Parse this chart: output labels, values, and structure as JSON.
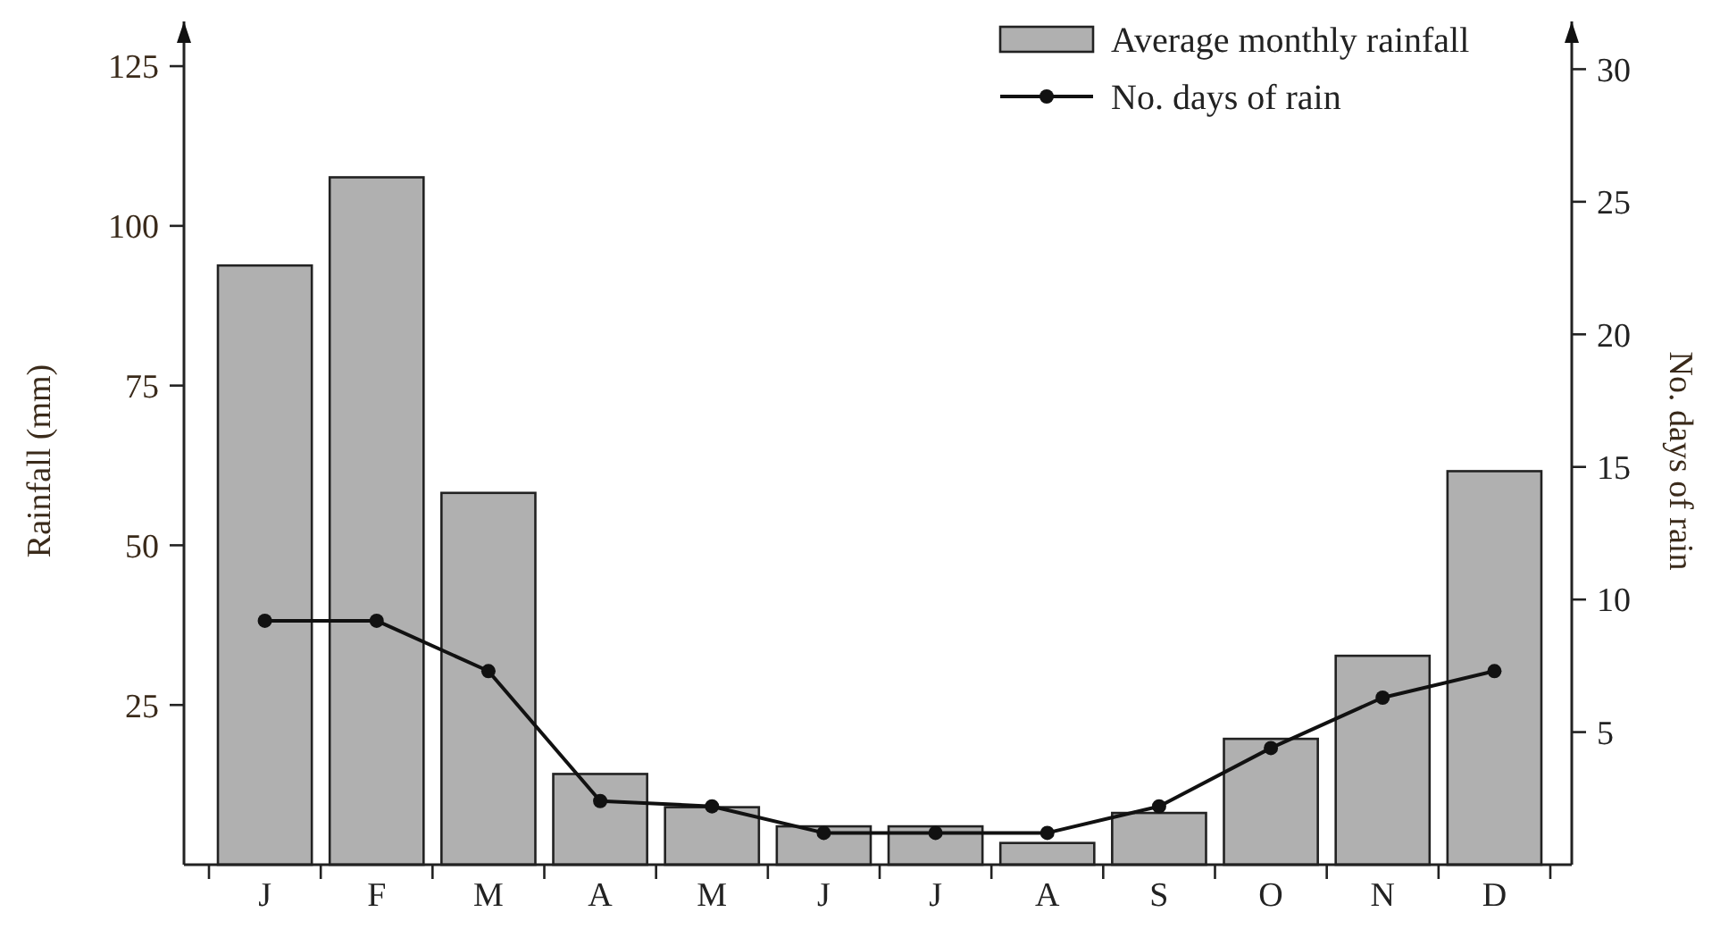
{
  "chart_data": {
    "type": "bar",
    "ylabel": "Rainfall (mm)",
    "y2label": "No. days of rain",
    "categories": [
      "J",
      "F",
      "M",
      "A",
      "M",
      "J",
      "J",
      "A",
      "S",
      "O",
      "N",
      "D"
    ],
    "series": [
      {
        "name": "Average monthly rainfall",
        "color": "#b0b0b0",
        "values": [
          93.8,
          107.6,
          58.2,
          14.2,
          9.0,
          6.0,
          6.0,
          3.4,
          8.1,
          19.7,
          32.7,
          61.6
        ]
      },
      {
        "name": "No. days of rain",
        "type": "line",
        "axis": "y2",
        "color": "#111111",
        "values": [
          9.2,
          9.2,
          7.3,
          2.4,
          2.2,
          1.2,
          1.2,
          1.2,
          2.2,
          4.4,
          6.3,
          7.3
        ]
      }
    ],
    "ylim": [
      0,
      132
    ],
    "yticks": [
      25,
      50,
      75,
      100,
      125
    ],
    "y2lim": [
      0,
      31.8
    ],
    "y2ticks": [
      5,
      10,
      15,
      20,
      25,
      30
    ],
    "grid": false,
    "legend": "top right",
    "marker": "circle",
    "line_style": "solid"
  }
}
